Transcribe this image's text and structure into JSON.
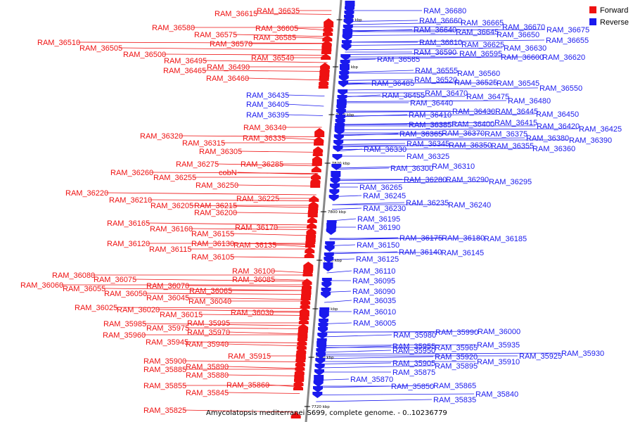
{
  "caption": "Amycolatopsis mediterranei S699, complete genome. - 0..10236779",
  "legend": [
    {
      "label": "Forward",
      "color": "#ee1111"
    },
    {
      "label": "Reverse",
      "color": "#1a1aee"
    }
  ],
  "colors": {
    "forward": "#ee1111",
    "reverse": "#1a1aee",
    "backbone": "#888888",
    "leader": "#333333"
  },
  "ticks": [
    "7880 kbp",
    "7860 kbp",
    "7840 kbp",
    "7820 kbp",
    "7800 kbp",
    "7780 kbp",
    "7760 kbp",
    "7740 kbp",
    "7720 kbp"
  ],
  "forward_genes": [
    {
      "label": "RAM_36635"
    },
    {
      "label": "RAM_36615"
    },
    {
      "label": "RAM_36605"
    },
    {
      "label": "RAM_36580"
    },
    {
      "label": "RAM_36585"
    },
    {
      "label": "RAM_36575"
    },
    {
      "label": "RAM_36570"
    },
    {
      "label": "RAM_36510"
    },
    {
      "label": "RAM_36505"
    },
    {
      "label": "RAM_36540"
    },
    {
      "label": "RAM_36500"
    },
    {
      "label": "RAM_36495"
    },
    {
      "label": "RAM_36490"
    },
    {
      "label": "RAM_36465"
    },
    {
      "label": "RAM_36460"
    },
    {
      "label": "RAM_36340"
    },
    {
      "label": "RAM_36320"
    },
    {
      "label": "RAM_36335"
    },
    {
      "label": "RAM_36315"
    },
    {
      "label": "RAM_36305"
    },
    {
      "label": "RAM_36275"
    },
    {
      "label": "RAM_36285"
    },
    {
      "label": "RAM_36260"
    },
    {
      "label": "cobN"
    },
    {
      "label": "RAM_36255"
    },
    {
      "label": "RAM_36250"
    },
    {
      "label": "RAM_36220"
    },
    {
      "label": "RAM_36225"
    },
    {
      "label": "RAM_36210"
    },
    {
      "label": "RAM_36205"
    },
    {
      "label": "RAM_36215"
    },
    {
      "label": "RAM_36200"
    },
    {
      "label": "RAM_36165"
    },
    {
      "label": "RAM_36170"
    },
    {
      "label": "RAM_36160"
    },
    {
      "label": "RAM_36155"
    },
    {
      "label": "RAM_36120"
    },
    {
      "label": "RAM_36130"
    },
    {
      "label": "RAM_36135"
    },
    {
      "label": "RAM_36115"
    },
    {
      "label": "RAM_36105"
    },
    {
      "label": "RAM_36100"
    },
    {
      "label": "RAM_36080"
    },
    {
      "label": "RAM_36085"
    },
    {
      "label": "RAM_36075"
    },
    {
      "label": "RAM_36060"
    },
    {
      "label": "RAM_36070"
    },
    {
      "label": "RAM_36055"
    },
    {
      "label": "RAM_36065"
    },
    {
      "label": "RAM_36050"
    },
    {
      "label": "RAM_36045"
    },
    {
      "label": "RAM_36040"
    },
    {
      "label": "RAM_36025"
    },
    {
      "label": "RAM_36020"
    },
    {
      "label": "RAM_36030"
    },
    {
      "label": "RAM_36015"
    },
    {
      "label": "RAM_35985"
    },
    {
      "label": "RAM_35995"
    },
    {
      "label": "RAM_35975"
    },
    {
      "label": "RAM_35970"
    },
    {
      "label": "RAM_35960"
    },
    {
      "label": "RAM_35945"
    },
    {
      "label": "RAM_35940"
    },
    {
      "label": "RAM_35915"
    },
    {
      "label": "RAM_35900"
    },
    {
      "label": "RAM_35890"
    },
    {
      "label": "RAM_35885"
    },
    {
      "label": "RAM_35880"
    },
    {
      "label": "RAM_35860"
    },
    {
      "label": "RAM_35855"
    },
    {
      "label": "RAM_35845"
    },
    {
      "label": "RAM_35825"
    }
  ],
  "reverse_genes": [
    {
      "label": "RAM_36680"
    },
    {
      "label": "RAM_36660"
    },
    {
      "label": "RAM_36665"
    },
    {
      "label": "RAM_36670"
    },
    {
      "label": "RAM_36675"
    },
    {
      "label": "RAM_36640"
    },
    {
      "label": "RAM_36645"
    },
    {
      "label": "RAM_36650"
    },
    {
      "label": "RAM_36655"
    },
    {
      "label": "RAM_36610"
    },
    {
      "label": "RAM_36625"
    },
    {
      "label": "RAM_36630"
    },
    {
      "label": "RAM_36590"
    },
    {
      "label": "RAM_36595"
    },
    {
      "label": "RAM_36600"
    },
    {
      "label": "RAM_36620"
    },
    {
      "label": "RAM_36565"
    },
    {
      "label": "RAM_36555"
    },
    {
      "label": "RAM_36560"
    },
    {
      "label": "RAM_36520"
    },
    {
      "label": "RAM_36525"
    },
    {
      "label": "RAM_36545"
    },
    {
      "label": "RAM_36485"
    },
    {
      "label": "RAM_36550"
    },
    {
      "label": "RAM_36470"
    },
    {
      "label": "RAM_36435"
    },
    {
      "label": "RAM_36455"
    },
    {
      "label": "RAM_36475"
    },
    {
      "label": "RAM_36480"
    },
    {
      "label": "RAM_36405"
    },
    {
      "label": "RAM_36440"
    },
    {
      "label": "RAM_36395"
    },
    {
      "label": "RAM_36410"
    },
    {
      "label": "RAM_36430"
    },
    {
      "label": "RAM_36445"
    },
    {
      "label": "RAM_36450"
    },
    {
      "label": "RAM_36385"
    },
    {
      "label": "RAM_36400"
    },
    {
      "label": "RAM_36415"
    },
    {
      "label": "RAM_36420"
    },
    {
      "label": "RAM_36425"
    },
    {
      "label": "RAM_36365"
    },
    {
      "label": "RAM_36370"
    },
    {
      "label": "RAM_36375"
    },
    {
      "label": "RAM_36380"
    },
    {
      "label": "RAM_36390"
    },
    {
      "label": "RAM_36345"
    },
    {
      "label": "RAM_36350"
    },
    {
      "label": "RAM_36355"
    },
    {
      "label": "RAM_36360"
    },
    {
      "label": "RAM_36330"
    },
    {
      "label": "RAM_36325"
    },
    {
      "label": "RAM_36300"
    },
    {
      "label": "RAM_36310"
    },
    {
      "label": "RAM_36280"
    },
    {
      "label": "RAM_36290"
    },
    {
      "label": "RAM_36295"
    },
    {
      "label": "RAM_36265"
    },
    {
      "label": "RAM_36245"
    },
    {
      "label": "RAM_36235"
    },
    {
      "label": "RAM_36240"
    },
    {
      "label": "RAM_36230"
    },
    {
      "label": "RAM_36195"
    },
    {
      "label": "RAM_36190"
    },
    {
      "label": "RAM_36175"
    },
    {
      "label": "RAM_36180"
    },
    {
      "label": "RAM_36185"
    },
    {
      "label": "RAM_36150"
    },
    {
      "label": "RAM_36140"
    },
    {
      "label": "RAM_36145"
    },
    {
      "label": "RAM_36125"
    },
    {
      "label": "RAM_36110"
    },
    {
      "label": "RAM_36095"
    },
    {
      "label": "RAM_36090"
    },
    {
      "label": "RAM_36035"
    },
    {
      "label": "RAM_36010"
    },
    {
      "label": "RAM_36005"
    },
    {
      "label": "RAM_35980"
    },
    {
      "label": "RAM_35990"
    },
    {
      "label": "RAM_36000"
    },
    {
      "label": "RAM_35955"
    },
    {
      "label": "RAM_35965"
    },
    {
      "label": "RAM_35935"
    },
    {
      "label": "RAM_35950"
    },
    {
      "label": "RAM_35925"
    },
    {
      "label": "RAM_35930"
    },
    {
      "label": "RAM_35920"
    },
    {
      "label": "RAM_35910"
    },
    {
      "label": "RAM_35905"
    },
    {
      "label": "RAM_35895"
    },
    {
      "label": "RAM_35875"
    },
    {
      "label": "RAM_35870"
    },
    {
      "label": "RAM_35865"
    },
    {
      "label": "RAM_35850"
    },
    {
      "label": "RAM_35840"
    },
    {
      "label": "RAM_35835"
    }
  ]
}
